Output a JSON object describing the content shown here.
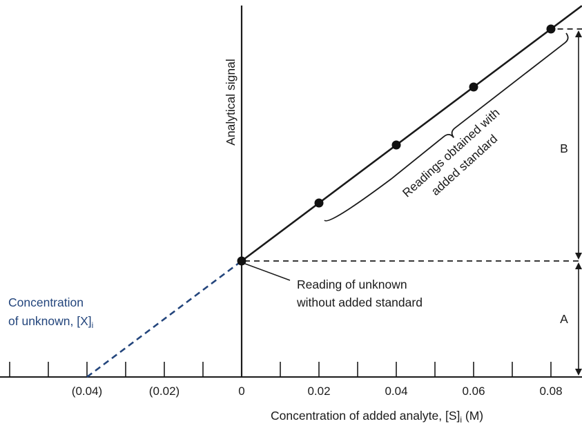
{
  "chart_data": {
    "type": "scatter",
    "title": "",
    "xlabel": "Concentration of added analyte, [S]",
    "xlabel_subscript": "i",
    "xlabel_unit": " (M)",
    "ylabel": "Analytical signal",
    "xlim": [
      -0.0625,
      0.088
    ],
    "ylim": [
      0,
      1
    ],
    "tick_values": [
      -0.06,
      -0.05,
      -0.04,
      -0.03,
      -0.02,
      -0.01,
      0,
      0.01,
      0.02,
      0.03,
      0.04,
      0.05,
      0.06,
      0.07,
      0.08
    ],
    "tick_labels": [
      {
        "x": -0.04,
        "text": "(0.04)"
      },
      {
        "x": -0.02,
        "text": "(0.02)"
      },
      {
        "x": 0,
        "text": "0"
      },
      {
        "x": 0.02,
        "text": "0.02"
      },
      {
        "x": 0.04,
        "text": "0.04"
      },
      {
        "x": 0.06,
        "text": "0.06"
      },
      {
        "x": 0.08,
        "text": "0.08"
      }
    ],
    "points": [
      {
        "x": 0,
        "y": 0.3
      },
      {
        "x": 0.02,
        "y": 0.45
      },
      {
        "x": 0.04,
        "y": 0.6
      },
      {
        "x": 0.06,
        "y": 0.75
      },
      {
        "x": 0.08,
        "y": 0.9
      }
    ],
    "fit_line": {
      "x": [
        0,
        0.088
      ],
      "y": [
        0.3,
        0.96
      ]
    },
    "extrapolation": {
      "x": [
        -0.04,
        0
      ],
      "y": [
        0,
        0.3
      ],
      "color": "#23457c"
    },
    "dim_levels": {
      "top": 0.9,
      "mid": 0.3,
      "bottom": 0
    },
    "grid": false,
    "annotations": {
      "unknown_reading": [
        "Reading of unknown",
        "without added standard"
      ],
      "standard_readings": [
        "Readings obtained with",
        "added standard"
      ],
      "unknown_conc": [
        "Concentration",
        "of unknown, [X]"
      ],
      "unknown_conc_subscript": "i",
      "dim_a": "A",
      "dim_b": "B"
    },
    "colors": {
      "line": "#1a1a1a",
      "extrapolation": "#23457c",
      "points": "#111111"
    }
  }
}
